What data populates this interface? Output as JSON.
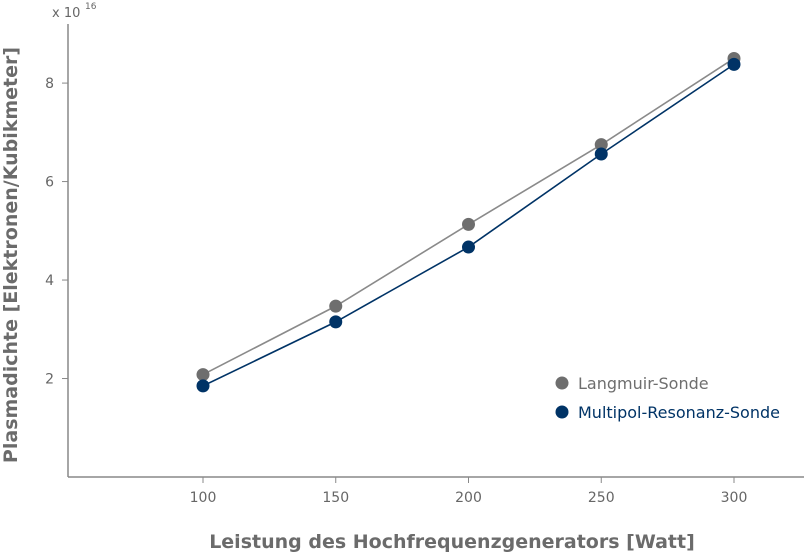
{
  "chart_data": {
    "type": "line",
    "xlabel": "Leistung des Hochfrequenzgenerators [Watt]",
    "ylabel": "Plasmadichte [Elektronen/Kubikmeter]",
    "y_multiplier_base": "x 10",
    "y_multiplier_exp": "16",
    "x_ticks": [
      "100",
      "150",
      "200",
      "250",
      "300"
    ],
    "y_ticks": [
      "2",
      "4",
      "6",
      "8"
    ],
    "xlim": [
      50,
      325
    ],
    "ylim": [
      0,
      9.2
    ],
    "grid": false,
    "legend_position": "bottom-right",
    "x": [
      100,
      150,
      200,
      250,
      300
    ],
    "series": [
      {
        "name": "Langmuir-Sonde",
        "values": [
          2.08,
          3.47,
          5.13,
          6.75,
          8.5
        ],
        "color": "#6e6e6e",
        "line_color": "#8a8a8a"
      },
      {
        "name": "Multipol-Resonanz-Sonde",
        "values": [
          1.85,
          3.15,
          4.67,
          6.56,
          8.38
        ],
        "color": "#003366",
        "line_color": "#003366"
      }
    ]
  }
}
